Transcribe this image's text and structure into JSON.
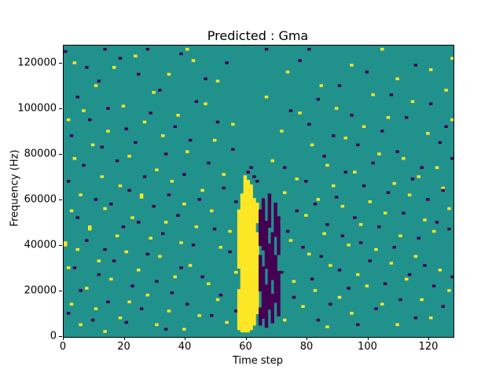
{
  "figure": {
    "title": "Predicted : Gma"
  },
  "chart_data": {
    "type": "heatmap",
    "title": "Predicted : Gma",
    "xlabel": "Time step",
    "ylabel": "Frequency (Hz)",
    "xlim": [
      0,
      128
    ],
    "ylim": [
      0,
      128000
    ],
    "x_bins": 128,
    "y_bins": 128,
    "x_ticks": [
      0,
      20,
      40,
      60,
      80,
      100,
      120
    ],
    "y_ticks": [
      0,
      20000,
      40000,
      60000,
      80000,
      100000,
      120000
    ],
    "legend": "none",
    "grid": false,
    "colors": {
      "background": "#21918c",
      "high": "#fde725",
      "low": "#440154"
    },
    "yellow_cells": [
      [
        0,
        40
      ],
      [
        0,
        41
      ],
      [
        1,
        30
      ],
      [
        1,
        95
      ],
      [
        2,
        14
      ],
      [
        2,
        55
      ],
      [
        3,
        78
      ],
      [
        3,
        120
      ],
      [
        4,
        38
      ],
      [
        5,
        5
      ],
      [
        5,
        62
      ],
      [
        6,
        99
      ],
      [
        7,
        21
      ],
      [
        8,
        47
      ],
      [
        8,
        48
      ],
      [
        9,
        84
      ],
      [
        10,
        12
      ],
      [
        10,
        110
      ],
      [
        11,
        33
      ],
      [
        12,
        70
      ],
      [
        13,
        2
      ],
      [
        13,
        56
      ],
      [
        14,
        90
      ],
      [
        15,
        25
      ],
      [
        16,
        118
      ],
      [
        17,
        44
      ],
      [
        18,
        8
      ],
      [
        18,
        66
      ],
      [
        19,
        101
      ],
      [
        20,
        37
      ],
      [
        21,
        15
      ],
      [
        21,
        79
      ],
      [
        22,
        52
      ],
      [
        23,
        123
      ],
      [
        24,
        29
      ],
      [
        25,
        61
      ],
      [
        25,
        62
      ],
      [
        26,
        94
      ],
      [
        27,
        18
      ],
      [
        28,
        43
      ],
      [
        29,
        107
      ],
      [
        30,
        5
      ],
      [
        30,
        73
      ],
      [
        31,
        35
      ],
      [
        32,
        88
      ],
      [
        33,
        50
      ],
      [
        34,
        11
      ],
      [
        34,
        115
      ],
      [
        35,
        68
      ],
      [
        36,
        26
      ],
      [
        37,
        97
      ],
      [
        38,
        41
      ],
      [
        39,
        3
      ],
      [
        39,
        58
      ],
      [
        40,
        81
      ],
      [
        40,
        126
      ],
      [
        41,
        31
      ],
      [
        42,
        121
      ],
      [
        43,
        48
      ],
      [
        44,
        9
      ],
      [
        45,
        64
      ],
      [
        46,
        102
      ],
      [
        47,
        23
      ],
      [
        48,
        55
      ],
      [
        49,
        86
      ],
      [
        50,
        16
      ],
      [
        50,
        112
      ],
      [
        51,
        39
      ],
      [
        52,
        71
      ],
      [
        53,
        6
      ],
      [
        54,
        46
      ],
      [
        55,
        93
      ],
      [
        56,
        28
      ],
      [
        64,
        12
      ],
      [
        65,
        60
      ],
      [
        66,
        105
      ],
      [
        67,
        34
      ],
      [
        68,
        77
      ],
      [
        69,
        19
      ],
      [
        70,
        50
      ],
      [
        71,
        90
      ],
      [
        72,
        7
      ],
      [
        72,
        63
      ],
      [
        73,
        116
      ],
      [
        74,
        42
      ],
      [
        75,
        24
      ],
      [
        76,
        69
      ],
      [
        77,
        98
      ],
      [
        78,
        13
      ],
      [
        79,
        53
      ],
      [
        80,
        36
      ],
      [
        81,
        84
      ],
      [
        82,
        20
      ],
      [
        83,
        60
      ],
      [
        84,
        110
      ],
      [
        85,
        45
      ],
      [
        86,
        4
      ],
      [
        86,
        75
      ],
      [
        87,
        31
      ],
      [
        88,
        66
      ],
      [
        89,
        100
      ],
      [
        90,
        17
      ],
      [
        91,
        57
      ],
      [
        92,
        87
      ],
      [
        93,
        40
      ],
      [
        94,
        10
      ],
      [
        94,
        119
      ],
      [
        95,
        72
      ],
      [
        96,
        27
      ],
      [
        97,
        49
      ],
      [
        98,
        92
      ],
      [
        99,
        22
      ],
      [
        100,
        59
      ],
      [
        101,
        106
      ],
      [
        102,
        38
      ],
      [
        103,
        80
      ],
      [
        104,
        14
      ],
      [
        104,
        126
      ],
      [
        105,
        54
      ],
      [
        106,
        96
      ],
      [
        107,
        32
      ],
      [
        108,
        67
      ],
      [
        109,
        5
      ],
      [
        109,
        113
      ],
      [
        110,
        44
      ],
      [
        111,
        78
      ],
      [
        112,
        25
      ],
      [
        113,
        62
      ],
      [
        114,
        103
      ],
      [
        115,
        35
      ],
      [
        116,
        70
      ],
      [
        117,
        16
      ],
      [
        118,
        51
      ],
      [
        119,
        89
      ],
      [
        120,
        8
      ],
      [
        120,
        117
      ],
      [
        121,
        46
      ],
      [
        122,
        74
      ],
      [
        123,
        29
      ],
      [
        124,
        65
      ],
      [
        125,
        108
      ],
      [
        126,
        20
      ],
      [
        126,
        56
      ],
      [
        127,
        95
      ],
      [
        127,
        122
      ]
    ],
    "purple_cells": [
      [
        0,
        125
      ],
      [
        1,
        10
      ],
      [
        1,
        68
      ],
      [
        2,
        88
      ],
      [
        3,
        30
      ],
      [
        4,
        52
      ],
      [
        4,
        105
      ],
      [
        5,
        20
      ],
      [
        6,
        75
      ],
      [
        7,
        42
      ],
      [
        7,
        118
      ],
      [
        8,
        95
      ],
      [
        9,
        7
      ],
      [
        10,
        60
      ],
      [
        11,
        27
      ],
      [
        11,
        112
      ],
      [
        12,
        83
      ],
      [
        13,
        38
      ],
      [
        13,
        126
      ],
      [
        14,
        15
      ],
      [
        14,
        100
      ],
      [
        15,
        58
      ],
      [
        16,
        33
      ],
      [
        17,
        77
      ],
      [
        18,
        122
      ],
      [
        19,
        48
      ],
      [
        20,
        6
      ],
      [
        20,
        91
      ],
      [
        21,
        64
      ],
      [
        22,
        22
      ],
      [
        23,
        85
      ],
      [
        24,
        50
      ],
      [
        24,
        115
      ],
      [
        25,
        12
      ],
      [
        26,
        70
      ],
      [
        27,
        36
      ],
      [
        27,
        126
      ],
      [
        28,
        98
      ],
      [
        29,
        57
      ],
      [
        30,
        24
      ],
      [
        31,
        108
      ],
      [
        32,
        45
      ],
      [
        33,
        3
      ],
      [
        33,
        80
      ],
      [
        34,
        62
      ],
      [
        35,
        19
      ],
      [
        36,
        92
      ],
      [
        37,
        53
      ],
      [
        38,
        30
      ],
      [
        38,
        124
      ],
      [
        39,
        71
      ],
      [
        40,
        14
      ],
      [
        41,
        86
      ],
      [
        42,
        40
      ],
      [
        43,
        103
      ],
      [
        44,
        60
      ],
      [
        45,
        26
      ],
      [
        46,
        113
      ],
      [
        47,
        76
      ],
      [
        48,
        9
      ],
      [
        49,
        47
      ],
      [
        50,
        94
      ],
      [
        51,
        18
      ],
      [
        52,
        65
      ],
      [
        53,
        120
      ],
      [
        54,
        37
      ],
      [
        55,
        82
      ],
      [
        56,
        11
      ],
      [
        56,
        59
      ],
      [
        60,
        72
      ],
      [
        61,
        74
      ],
      [
        62,
        70
      ],
      [
        63,
        68
      ],
      [
        66,
        126
      ],
      [
        71,
        28
      ],
      [
        72,
        74
      ],
      [
        73,
        46
      ],
      [
        74,
        99
      ],
      [
        75,
        17
      ],
      [
        76,
        55
      ],
      [
        77,
        121
      ],
      [
        78,
        39
      ],
      [
        79,
        68
      ],
      [
        80,
        93
      ],
      [
        80,
        126
      ],
      [
        81,
        25
      ],
      [
        82,
        58
      ],
      [
        83,
        7
      ],
      [
        83,
        104
      ],
      [
        84,
        35
      ],
      [
        85,
        79
      ],
      [
        86,
        49
      ],
      [
        87,
        14
      ],
      [
        88,
        88
      ],
      [
        89,
        61
      ],
      [
        90,
        29
      ],
      [
        90,
        110
      ],
      [
        91,
        44
      ],
      [
        92,
        72
      ],
      [
        93,
        21
      ],
      [
        94,
        97
      ],
      [
        95,
        52
      ],
      [
        96,
        5
      ],
      [
        96,
        84
      ],
      [
        97,
        41
      ],
      [
        98,
        66
      ],
      [
        99,
        116
      ],
      [
        100,
        33
      ],
      [
        101,
        76
      ],
      [
        102,
        12
      ],
      [
        103,
        48
      ],
      [
        104,
        90
      ],
      [
        105,
        23
      ],
      [
        106,
        63
      ],
      [
        107,
        106
      ],
      [
        108,
        39
      ],
      [
        109,
        81
      ],
      [
        110,
        16
      ],
      [
        111,
        54
      ],
      [
        112,
        96
      ],
      [
        113,
        27
      ],
      [
        114,
        69
      ],
      [
        115,
        8
      ],
      [
        115,
        119
      ],
      [
        116,
        43
      ],
      [
        117,
        74
      ],
      [
        118,
        31
      ],
      [
        119,
        60
      ],
      [
        120,
        102
      ],
      [
        121,
        22
      ],
      [
        122,
        50
      ],
      [
        123,
        85
      ],
      [
        124,
        13
      ],
      [
        124,
        64
      ],
      [
        125,
        92
      ],
      [
        126,
        47
      ],
      [
        127,
        26
      ],
      [
        127,
        78
      ]
    ],
    "yellow_spans": [
      [
        57,
        3,
        20
      ],
      [
        57,
        30,
        55
      ],
      [
        58,
        2,
        62
      ],
      [
        59,
        2,
        70
      ],
      [
        60,
        2,
        68
      ],
      [
        61,
        3,
        66
      ],
      [
        62,
        5,
        60
      ],
      [
        63,
        10,
        45
      ],
      [
        63,
        50,
        58
      ]
    ],
    "purple_spans": [
      [
        64,
        5,
        12
      ],
      [
        64,
        20,
        35
      ],
      [
        64,
        40,
        55
      ],
      [
        65,
        8,
        30
      ],
      [
        65,
        38,
        60
      ],
      [
        66,
        4,
        22
      ],
      [
        66,
        30,
        50
      ],
      [
        67,
        12,
        40
      ],
      [
        67,
        48,
        62
      ],
      [
        68,
        6,
        18
      ],
      [
        68,
        25,
        45
      ],
      [
        69,
        15,
        35
      ],
      [
        69,
        44,
        58
      ],
      [
        70,
        9,
        28
      ],
      [
        70,
        36,
        52
      ]
    ]
  }
}
